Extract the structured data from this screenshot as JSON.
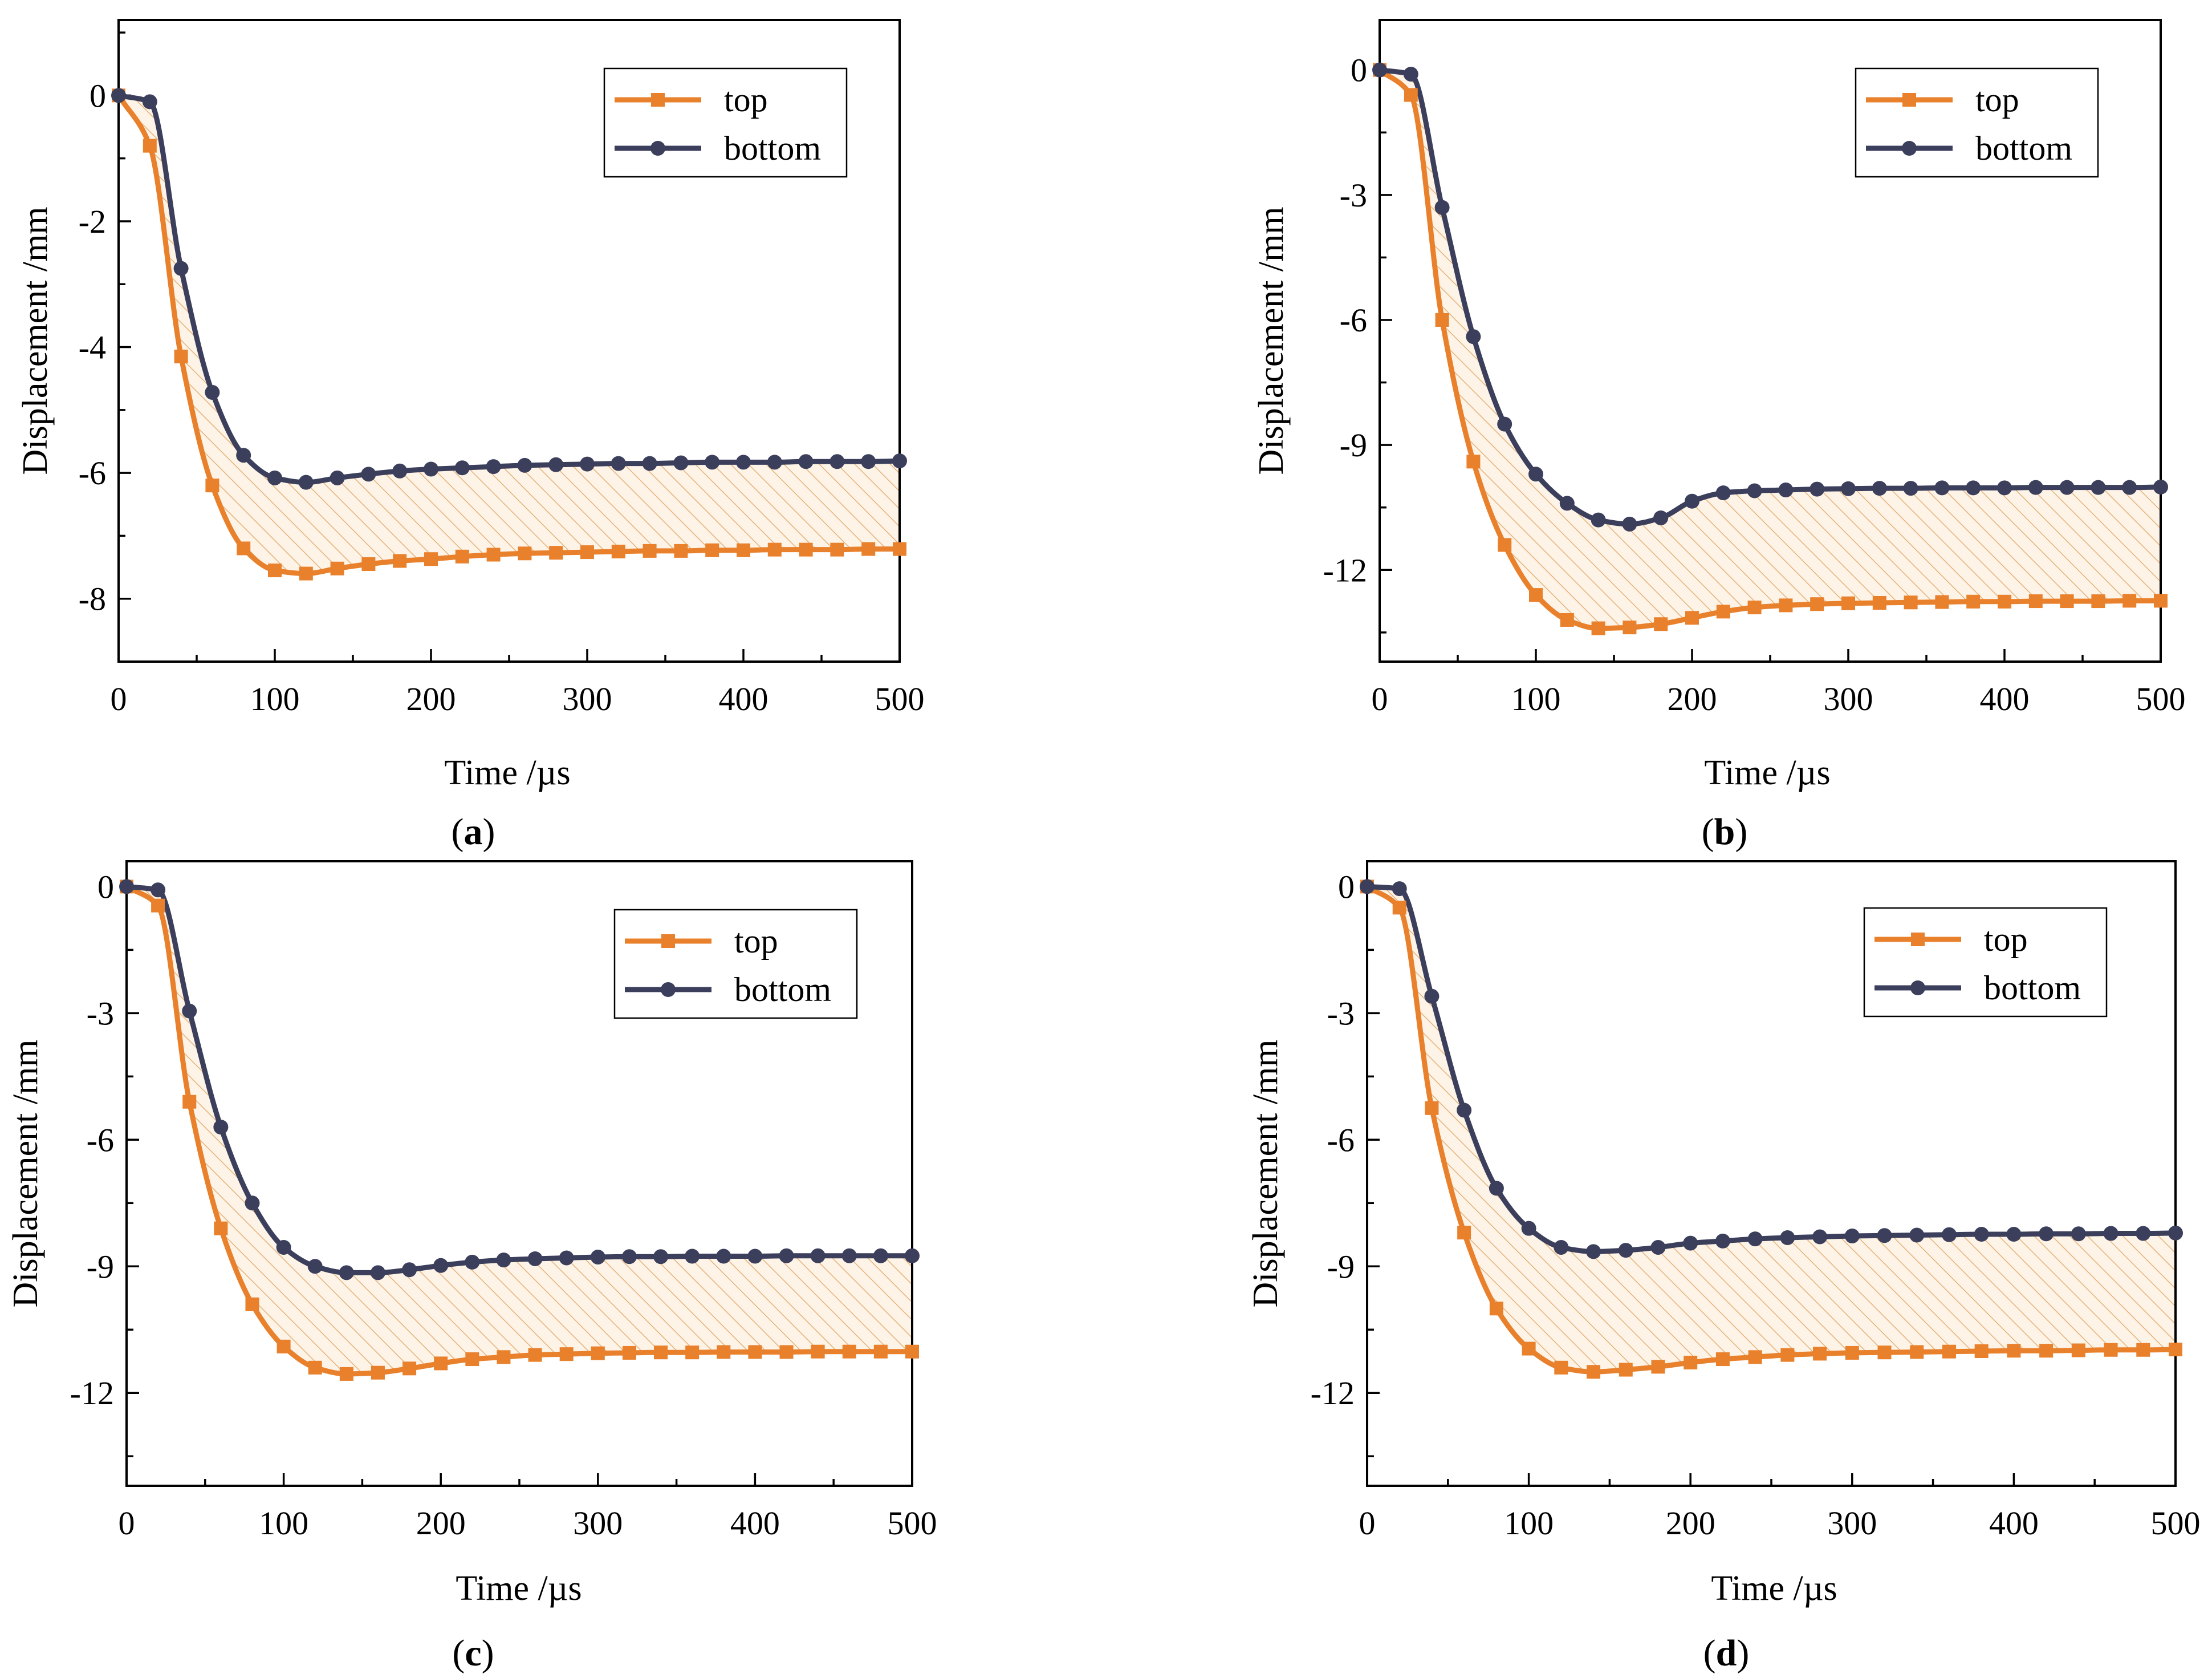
{
  "colors": {
    "top": "#e8802c",
    "bottom": "#3b3f5c",
    "hatch": "#e6b27a",
    "fill": "#fdf3e6"
  },
  "chart_data": [
    {
      "id": "a",
      "type": "line",
      "caption": {
        "open": "(",
        "letter": "a",
        "close": ")"
      },
      "xlabel": "Time /µs",
      "ylabel": "Displacement /mm",
      "xlim": [
        0,
        500
      ],
      "ylim": [
        -9,
        1.2
      ],
      "xticks": [
        0,
        100,
        200,
        300,
        400,
        500
      ],
      "xtick_labels": [
        "0",
        "100",
        "200",
        "300",
        "400",
        "500"
      ],
      "yticks": [
        0,
        -2,
        -4,
        -6,
        -8
      ],
      "ytick_labels": [
        "0",
        "-2",
        "-4",
        "-6",
        "-8"
      ],
      "legend": {
        "position": "top-right",
        "entries": [
          "top",
          "bottom"
        ]
      },
      "x": [
        0,
        20,
        40,
        60,
        80,
        100,
        120,
        140,
        160,
        180,
        200,
        220,
        240,
        260,
        280,
        300,
        320,
        340,
        360,
        380,
        400,
        420,
        440,
        460,
        480,
        500
      ],
      "series": [
        {
          "name": "top",
          "marker": "square",
          "values": [
            0,
            -0.8,
            -4.15,
            -6.2,
            -7.2,
            -7.55,
            -7.6,
            -7.52,
            -7.45,
            -7.4,
            -7.37,
            -7.33,
            -7.3,
            -7.28,
            -7.27,
            -7.26,
            -7.25,
            -7.24,
            -7.24,
            -7.23,
            -7.23,
            -7.22,
            -7.22,
            -7.22,
            -7.21,
            -7.21
          ]
        },
        {
          "name": "bottom",
          "marker": "circle",
          "values": [
            0,
            -0.1,
            -2.75,
            -4.72,
            -5.72,
            -6.08,
            -6.15,
            -6.08,
            -6.02,
            -5.97,
            -5.94,
            -5.92,
            -5.9,
            -5.88,
            -5.87,
            -5.86,
            -5.85,
            -5.85,
            -5.84,
            -5.83,
            -5.83,
            -5.83,
            -5.82,
            -5.82,
            -5.82,
            -5.81
          ]
        }
      ]
    },
    {
      "id": "b",
      "type": "line",
      "caption": {
        "open": "(",
        "letter": "b",
        "close": ")"
      },
      "xlabel": "Time /µs",
      "ylabel": "Displacement /mm",
      "xlim": [
        0,
        500
      ],
      "ylim": [
        -14.2,
        1.2
      ],
      "xticks": [
        0,
        100,
        200,
        300,
        400,
        500
      ],
      "xtick_labels": [
        "0",
        "100",
        "200",
        "300",
        "400",
        "500"
      ],
      "yticks": [
        0,
        -3,
        -6,
        -9,
        -12
      ],
      "ytick_labels": [
        "0",
        "-3",
        "-6",
        "-9",
        "-12"
      ],
      "legend": {
        "position": "top-right",
        "entries": [
          "top",
          "bottom"
        ]
      },
      "x": [
        0,
        20,
        40,
        60,
        80,
        100,
        120,
        140,
        160,
        180,
        200,
        220,
        240,
        260,
        280,
        300,
        320,
        340,
        360,
        380,
        400,
        420,
        440,
        460,
        480,
        500
      ],
      "series": [
        {
          "name": "top",
          "marker": "square",
          "values": [
            0,
            -0.6,
            -6.0,
            -9.4,
            -11.4,
            -12.6,
            -13.2,
            -13.4,
            -13.38,
            -13.3,
            -13.15,
            -13.0,
            -12.9,
            -12.85,
            -12.82,
            -12.8,
            -12.79,
            -12.78,
            -12.77,
            -12.76,
            -12.76,
            -12.75,
            -12.75,
            -12.75,
            -12.74,
            -12.74
          ]
        },
        {
          "name": "bottom",
          "marker": "circle",
          "values": [
            0,
            -0.1,
            -3.3,
            -6.4,
            -8.5,
            -9.7,
            -10.4,
            -10.8,
            -10.9,
            -10.75,
            -10.35,
            -10.15,
            -10.1,
            -10.08,
            -10.06,
            -10.05,
            -10.04,
            -10.04,
            -10.03,
            -10.03,
            -10.03,
            -10.02,
            -10.02,
            -10.02,
            -10.02,
            -10.01
          ]
        }
      ]
    },
    {
      "id": "c",
      "type": "line",
      "caption": {
        "open": "(",
        "letter": "c",
        "close": ")"
      },
      "xlabel": "Time /µs",
      "ylabel": "Displacement /mm",
      "xlim": [
        0,
        500
      ],
      "ylim": [
        -14.2,
        0.6
      ],
      "xticks": [
        0,
        100,
        200,
        300,
        400,
        500
      ],
      "xtick_labels": [
        "0",
        "100",
        "200",
        "300",
        "400",
        "500"
      ],
      "yticks": [
        0,
        -3,
        -6,
        -9,
        -12
      ],
      "ytick_labels": [
        "0",
        "-3",
        "-6",
        "-9",
        "-12"
      ],
      "legend": {
        "position": "top-right",
        "entries": [
          "top",
          "bottom"
        ]
      },
      "x": [
        0,
        20,
        40,
        60,
        80,
        100,
        120,
        140,
        160,
        180,
        200,
        220,
        240,
        260,
        280,
        300,
        320,
        340,
        360,
        380,
        400,
        420,
        440,
        460,
        480,
        500
      ],
      "series": [
        {
          "name": "top",
          "marker": "square",
          "values": [
            0,
            -0.45,
            -5.1,
            -8.1,
            -9.9,
            -10.9,
            -11.4,
            -11.55,
            -11.52,
            -11.42,
            -11.3,
            -11.2,
            -11.15,
            -11.1,
            -11.08,
            -11.06,
            -11.05,
            -11.04,
            -11.04,
            -11.03,
            -11.03,
            -11.03,
            -11.02,
            -11.02,
            -11.02,
            -11.02
          ]
        },
        {
          "name": "bottom",
          "marker": "circle",
          "values": [
            0,
            -0.08,
            -2.95,
            -5.7,
            -7.5,
            -8.55,
            -9.0,
            -9.15,
            -9.15,
            -9.08,
            -8.98,
            -8.9,
            -8.85,
            -8.82,
            -8.8,
            -8.78,
            -8.77,
            -8.77,
            -8.76,
            -8.76,
            -8.76,
            -8.75,
            -8.75,
            -8.75,
            -8.75,
            -8.75
          ]
        }
      ]
    },
    {
      "id": "d",
      "type": "line",
      "caption": {
        "open": "(",
        "letter": "d",
        "close": ")"
      },
      "xlabel": "Time /µs",
      "ylabel": "Displacement /mm",
      "xlim": [
        0,
        500
      ],
      "ylim": [
        -14.2,
        0.6
      ],
      "xticks": [
        0,
        100,
        200,
        300,
        400,
        500
      ],
      "xtick_labels": [
        "0",
        "100",
        "200",
        "300",
        "400",
        "500"
      ],
      "yticks": [
        0,
        -3,
        -6,
        -9,
        -12
      ],
      "ytick_labels": [
        "0",
        "-3",
        "-6",
        "-9",
        "-12"
      ],
      "legend": {
        "position": "top-right",
        "entries": [
          "top",
          "bottom"
        ]
      },
      "x": [
        0,
        20,
        40,
        60,
        80,
        100,
        120,
        140,
        160,
        180,
        200,
        220,
        240,
        260,
        280,
        300,
        320,
        340,
        360,
        380,
        400,
        420,
        440,
        460,
        480,
        500
      ],
      "series": [
        {
          "name": "top",
          "marker": "square",
          "values": [
            0,
            -0.5,
            -5.25,
            -8.2,
            -10.0,
            -10.95,
            -11.4,
            -11.5,
            -11.45,
            -11.38,
            -11.28,
            -11.2,
            -11.15,
            -11.1,
            -11.07,
            -11.05,
            -11.04,
            -11.03,
            -11.02,
            -11.01,
            -11.0,
            -11.0,
            -10.99,
            -10.98,
            -10.98,
            -10.97
          ]
        },
        {
          "name": "bottom",
          "marker": "circle",
          "values": [
            0,
            -0.05,
            -2.6,
            -5.3,
            -7.15,
            -8.1,
            -8.55,
            -8.65,
            -8.62,
            -8.55,
            -8.45,
            -8.4,
            -8.35,
            -8.32,
            -8.3,
            -8.28,
            -8.27,
            -8.26,
            -8.25,
            -8.24,
            -8.24,
            -8.23,
            -8.23,
            -8.22,
            -8.22,
            -8.21
          ]
        }
      ]
    }
  ]
}
